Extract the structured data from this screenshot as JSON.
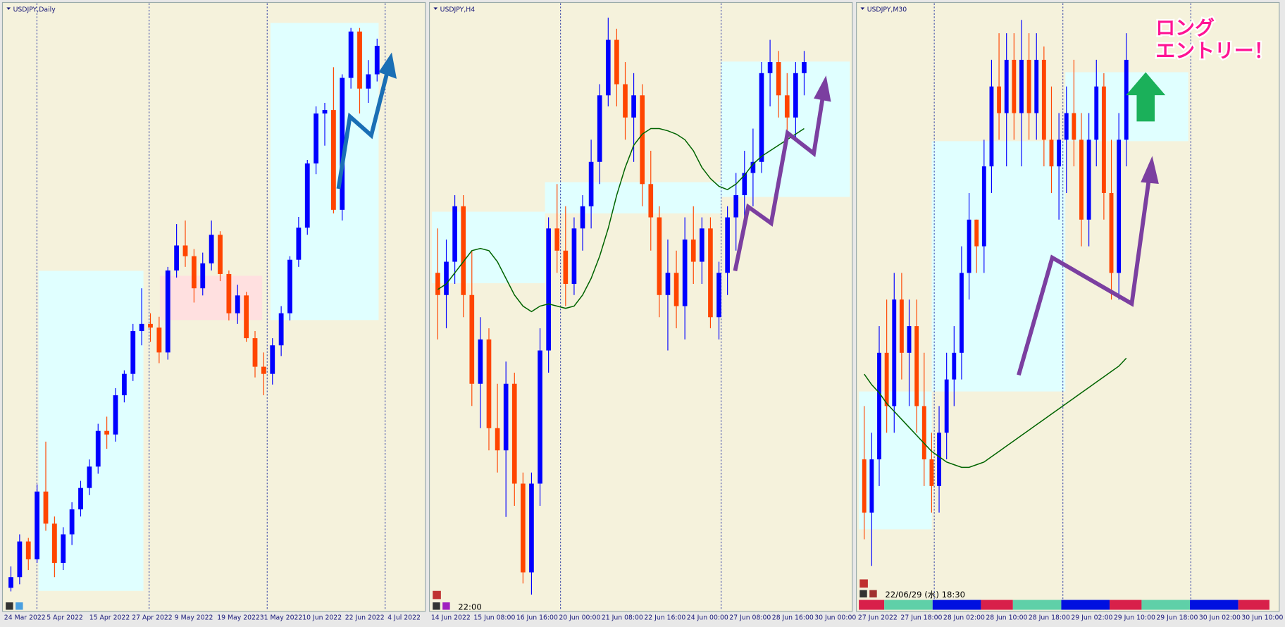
{
  "chart_data": [
    {
      "type": "candlestick",
      "title": "USDJPY,Daily",
      "up_color": "#0000ff",
      "down_color": "#ff4500",
      "ylim": [
        120.5,
        137.3
      ],
      "x_labels": [
        "24 Mar 2022",
        "5 Apr 2022",
        "15 Apr 2022",
        "27 Apr 2022",
        "9 May 2022",
        "19 May 2022",
        "31 May 2022",
        "10 Jun 2022",
        "22 Jun 2022",
        "4 Jul 2022"
      ],
      "ohlc": [
        [
          121.0,
          121.6,
          120.9,
          121.3
        ],
        [
          121.3,
          122.5,
          121.1,
          122.3
        ],
        [
          122.3,
          122.4,
          121.5,
          121.8
        ],
        [
          121.8,
          123.9,
          121.7,
          123.7
        ],
        [
          123.7,
          125.1,
          122.6,
          122.8
        ],
        [
          122.8,
          123.0,
          121.3,
          121.7
        ],
        [
          121.7,
          122.7,
          121.5,
          122.5
        ],
        [
          122.5,
          123.4,
          122.2,
          123.2
        ],
        [
          123.2,
          124.0,
          123.0,
          123.8
        ],
        [
          123.8,
          124.6,
          123.6,
          124.4
        ],
        [
          124.4,
          125.6,
          124.2,
          125.4
        ],
        [
          125.4,
          125.8,
          124.9,
          125.3
        ],
        [
          125.3,
          126.6,
          125.1,
          126.4
        ],
        [
          126.4,
          127.1,
          126.2,
          127.0
        ],
        [
          127.0,
          128.4,
          126.8,
          128.2
        ],
        [
          128.2,
          129.4,
          127.8,
          128.4
        ],
        [
          128.4,
          128.7,
          127.9,
          128.3
        ],
        [
          128.3,
          128.6,
          127.3,
          127.6
        ],
        [
          127.6,
          130.0,
          127.4,
          129.9
        ],
        [
          129.9,
          131.2,
          129.7,
          130.6
        ],
        [
          130.6,
          131.3,
          130.0,
          130.3
        ],
        [
          130.3,
          130.5,
          129.0,
          129.4
        ],
        [
          129.4,
          130.4,
          129.2,
          130.1
        ],
        [
          130.1,
          131.3,
          129.9,
          130.9
        ],
        [
          130.9,
          131.0,
          129.6,
          129.8
        ],
        [
          129.8,
          129.9,
          128.5,
          128.7
        ],
        [
          128.7,
          129.5,
          128.4,
          129.2
        ],
        [
          129.2,
          129.3,
          127.9,
          128.0
        ],
        [
          128.0,
          128.2,
          126.9,
          127.2
        ],
        [
          127.2,
          127.6,
          126.4,
          127.0
        ],
        [
          127.0,
          128.0,
          126.7,
          127.8
        ],
        [
          127.8,
          128.9,
          127.5,
          128.7
        ],
        [
          128.7,
          130.3,
          128.5,
          130.2
        ],
        [
          130.2,
          131.4,
          130.0,
          131.1
        ],
        [
          131.1,
          133.0,
          130.9,
          132.9
        ],
        [
          132.9,
          134.5,
          132.6,
          134.3
        ],
        [
          134.3,
          134.6,
          133.4,
          134.4
        ],
        [
          134.4,
          135.6,
          131.5,
          131.6
        ],
        [
          131.6,
          135.4,
          131.3,
          135.3
        ],
        [
          135.3,
          136.7,
          135.0,
          136.6
        ],
        [
          136.6,
          136.7,
          134.3,
          135.0
        ],
        [
          135.0,
          135.8,
          134.6,
          135.4
        ],
        [
          135.4,
          136.4,
          135.2,
          136.2
        ]
      ]
    },
    {
      "type": "candlestick",
      "title": "USDJPY,H4",
      "up_color": "#0000ff",
      "down_color": "#ff4500",
      "ma_color": "#006400",
      "ylim": [
        131.4,
        136.8
      ],
      "time": "22:00",
      "x_labels": [
        "14 Jun 2022",
        "15 Jun 08:00",
        "16 Jun 16:00",
        "20 Jun 00:00",
        "21 Jun 08:00",
        "22 Jun 16:00",
        "24 Jun 00:00",
        "27 Jun 08:00",
        "28 Jun 16:00",
        "30 Jun 00:00"
      ],
      "ohlc": [
        [
          134.4,
          134.8,
          133.8,
          134.2
        ],
        [
          134.2,
          134.7,
          133.9,
          134.5
        ],
        [
          134.5,
          135.1,
          134.3,
          135.0
        ],
        [
          135.0,
          135.1,
          134.0,
          134.2
        ],
        [
          134.2,
          134.6,
          133.2,
          133.4
        ],
        [
          133.4,
          134.0,
          133.0,
          133.8
        ],
        [
          133.8,
          133.9,
          132.8,
          133.0
        ],
        [
          133.0,
          133.4,
          132.6,
          132.8
        ],
        [
          132.8,
          133.6,
          132.2,
          133.4
        ],
        [
          133.4,
          133.5,
          132.3,
          132.5
        ],
        [
          132.5,
          132.6,
          131.6,
          131.7
        ],
        [
          131.7,
          132.6,
          131.5,
          132.5
        ],
        [
          132.5,
          133.9,
          132.3,
          133.7
        ],
        [
          133.7,
          134.9,
          133.5,
          134.8
        ],
        [
          134.8,
          135.2,
          134.4,
          134.6
        ],
        [
          134.6,
          135.0,
          134.1,
          134.3
        ],
        [
          134.3,
          134.9,
          134.2,
          134.8
        ],
        [
          134.8,
          135.1,
          134.6,
          135.0
        ],
        [
          135.0,
          135.6,
          134.8,
          135.4
        ],
        [
          135.4,
          136.1,
          135.2,
          136.0
        ],
        [
          136.0,
          136.7,
          135.9,
          136.5
        ],
        [
          136.5,
          136.6,
          135.9,
          136.1
        ],
        [
          136.1,
          136.3,
          135.6,
          135.8
        ],
        [
          135.8,
          136.2,
          135.4,
          136.0
        ],
        [
          136.0,
          136.1,
          135.0,
          135.2
        ],
        [
          135.2,
          135.5,
          134.6,
          134.9
        ],
        [
          134.9,
          135.0,
          134.0,
          134.2
        ],
        [
          134.2,
          134.7,
          133.7,
          134.4
        ],
        [
          134.4,
          134.6,
          133.9,
          134.1
        ],
        [
          134.1,
          134.9,
          133.8,
          134.7
        ],
        [
          134.7,
          135.0,
          134.3,
          134.5
        ],
        [
          134.5,
          134.9,
          134.3,
          134.8
        ],
        [
          134.8,
          134.9,
          133.9,
          134.0
        ],
        [
          134.0,
          134.5,
          133.8,
          134.4
        ],
        [
          134.4,
          135.0,
          134.2,
          134.9
        ],
        [
          134.9,
          135.3,
          134.6,
          135.1
        ],
        [
          135.1,
          135.5,
          134.9,
          135.3
        ],
        [
          135.3,
          135.7,
          135.0,
          135.4
        ],
        [
          135.4,
          136.3,
          135.3,
          136.2
        ],
        [
          136.2,
          136.5,
          135.9,
          136.3
        ],
        [
          136.3,
          136.4,
          135.8,
          136.0
        ],
        [
          136.0,
          136.2,
          135.6,
          135.8
        ],
        [
          135.8,
          136.3,
          135.6,
          136.2
        ],
        [
          136.2,
          136.4,
          136.0,
          136.3
        ]
      ],
      "ma": [
        134.25,
        134.3,
        134.4,
        134.5,
        134.6,
        134.62,
        134.6,
        134.5,
        134.35,
        134.2,
        134.1,
        134.05,
        134.1,
        134.12,
        134.1,
        134.08,
        134.1,
        134.2,
        134.35,
        134.55,
        134.8,
        135.1,
        135.35,
        135.55,
        135.65,
        135.7,
        135.7,
        135.68,
        135.65,
        135.6,
        135.5,
        135.35,
        135.25,
        135.18,
        135.15,
        135.2,
        135.28,
        135.38,
        135.45,
        135.5,
        135.55,
        135.6,
        135.65,
        135.7
      ]
    },
    {
      "type": "candlestick",
      "title": "USDJPY,M30",
      "up_color": "#0000ff",
      "down_color": "#ff4500",
      "ma_color": "#006400",
      "ylim": [
        134.8,
        137.0
      ],
      "time": "22/06/29 (水) 18:30",
      "x_labels": [
        "27 Jun 2022",
        "27 Jun 18:00",
        "28 Jun 02:00",
        "28 Jun 10:00",
        "28 Jun 18:00",
        "29 Jun 02:00",
        "29 Jun 10:00",
        "29 Jun 18:00",
        "30 Jun 02:00",
        "30 Jun 10:00"
      ],
      "ohlc": [
        [
          135.3,
          135.5,
          135.0,
          135.1
        ],
        [
          135.1,
          135.4,
          134.9,
          135.3
        ],
        [
          135.3,
          135.8,
          135.2,
          135.7
        ],
        [
          135.7,
          135.9,
          135.4,
          135.5
        ],
        [
          135.5,
          136.0,
          135.4,
          135.9
        ],
        [
          135.9,
          136.0,
          135.6,
          135.7
        ],
        [
          135.7,
          135.9,
          135.5,
          135.8
        ],
        [
          135.8,
          135.9,
          135.4,
          135.5
        ],
        [
          135.5,
          135.7,
          135.2,
          135.3
        ],
        [
          135.3,
          135.4,
          135.1,
          135.2
        ],
        [
          135.2,
          135.5,
          135.1,
          135.4
        ],
        [
          135.4,
          135.7,
          135.3,
          135.6
        ],
        [
          135.6,
          135.8,
          135.5,
          135.7
        ],
        [
          135.7,
          136.1,
          135.6,
          136.0
        ],
        [
          136.0,
          136.3,
          135.9,
          136.2
        ],
        [
          136.2,
          136.2,
          136.0,
          136.1
        ],
        [
          136.1,
          136.5,
          136.0,
          136.4
        ],
        [
          136.4,
          136.8,
          136.3,
          136.7
        ],
        [
          136.7,
          136.9,
          136.5,
          136.6
        ],
        [
          136.6,
          136.9,
          136.4,
          136.8
        ],
        [
          136.8,
          136.9,
          136.5,
          136.6
        ],
        [
          136.6,
          136.95,
          136.4,
          136.8
        ],
        [
          136.8,
          136.9,
          136.5,
          136.6
        ],
        [
          136.6,
          136.9,
          136.5,
          136.8
        ],
        [
          136.8,
          136.85,
          136.4,
          136.5
        ],
        [
          136.5,
          136.7,
          136.3,
          136.4
        ],
        [
          136.4,
          136.6,
          136.2,
          136.5
        ],
        [
          136.5,
          136.7,
          136.3,
          136.6
        ],
        [
          136.6,
          136.8,
          136.4,
          136.5
        ],
        [
          136.5,
          136.6,
          136.1,
          136.2
        ],
        [
          136.2,
          136.6,
          136.1,
          136.5
        ],
        [
          136.5,
          136.8,
          136.4,
          136.7
        ],
        [
          136.7,
          136.75,
          136.2,
          136.3
        ],
        [
          136.3,
          136.5,
          135.9,
          136.0
        ],
        [
          136.0,
          136.6,
          135.9,
          136.5
        ],
        [
          136.5,
          136.9,
          136.4,
          136.8
        ]
      ],
      "ma": [
        135.62,
        135.58,
        135.55,
        135.51,
        135.48,
        135.45,
        135.42,
        135.39,
        135.36,
        135.33,
        135.31,
        135.29,
        135.28,
        135.27,
        135.27,
        135.28,
        135.29,
        135.31,
        135.33,
        135.35,
        135.37,
        135.39,
        135.41,
        135.43,
        135.45,
        135.47,
        135.49,
        135.51,
        135.53,
        135.55,
        135.57,
        135.59,
        135.61,
        135.63,
        135.65,
        135.68
      ]
    }
  ],
  "annotation": [
    "ロング",
    "エントリー！"
  ]
}
